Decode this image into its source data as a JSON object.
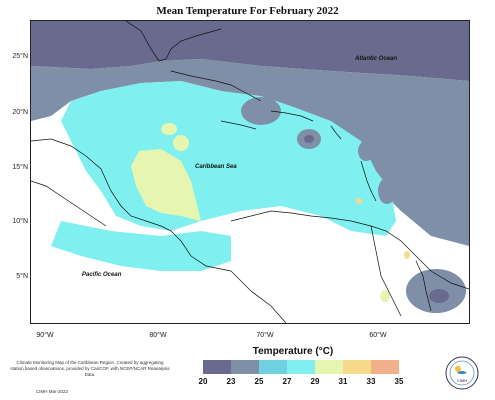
{
  "title": "Mean Temperature For February 2022",
  "lat_labels": [
    "25°N",
    "20°N",
    "15°N",
    "10°N",
    "5°N"
  ],
  "lon_labels": [
    "90°W",
    "80°W",
    "70°W",
    "60°W"
  ],
  "places": {
    "atlantic": "Atlantic Ocean",
    "caribbean": "Caribbean Sea",
    "pacific": "Pacific Ocean"
  },
  "legend": {
    "title": "Temperature (°C)",
    "ticks": [
      "20",
      "23",
      "25",
      "27",
      "29",
      "31",
      "33",
      "35"
    ],
    "colors": [
      "#6a6a8e",
      "#7f8fa8",
      "#6fd0e0",
      "#7ff0ef",
      "#e6f5b0",
      "#f6da8a",
      "#f2b08a"
    ]
  },
  "footnote": "Climate Monitoring Map of the Caribbean Region. Created by aggregating station based observations, provided by CariCOF, with NCEP/NCAR Reanalysis Data.",
  "credit": "CIMH Mar-2022",
  "logo_text": "CIMH"
}
